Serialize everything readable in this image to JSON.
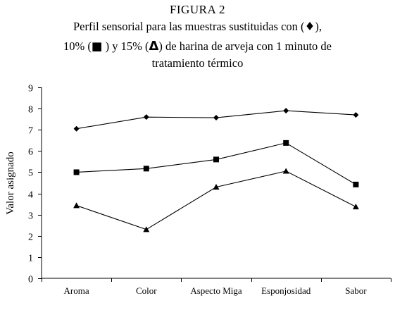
{
  "figure_label": "FIGURA 2",
  "subtitle": {
    "line1_text": "Perfil sensorial para las muestras sustituidas con (",
    "line1_symbol": "♦",
    "line1_end": "),",
    "line2_pct1": "10% (",
    "line2_symbol1": "■",
    "line2_mid": " ) y 15% (",
    "line2_symbol2": "Δ",
    "line2_end": ") de harina de arveja con 1 minuto de",
    "line3": "tratamiento térmico"
  },
  "chart_data": {
    "type": "line",
    "title": "FIGURA 2",
    "xlabel": "",
    "ylabel": "Valor asignado",
    "ylim": [
      0,
      9
    ],
    "yticks": [
      "0",
      "1",
      "2",
      "3",
      "4",
      "5",
      "6",
      "7",
      "8",
      "9"
    ],
    "categories": [
      "Aroma",
      "Color",
      "Aspecto Miga",
      "Esponjosidad",
      "Sabor"
    ],
    "grid": false,
    "series": [
      {
        "marker": "diamond",
        "values": [
          7.05,
          7.6,
          7.57,
          7.9,
          7.7
        ]
      },
      {
        "marker": "square",
        "values": [
          5.0,
          5.17,
          5.6,
          6.38,
          4.42
        ]
      },
      {
        "marker": "triangle",
        "values": [
          3.43,
          2.3,
          4.3,
          5.05,
          3.37
        ]
      }
    ]
  }
}
